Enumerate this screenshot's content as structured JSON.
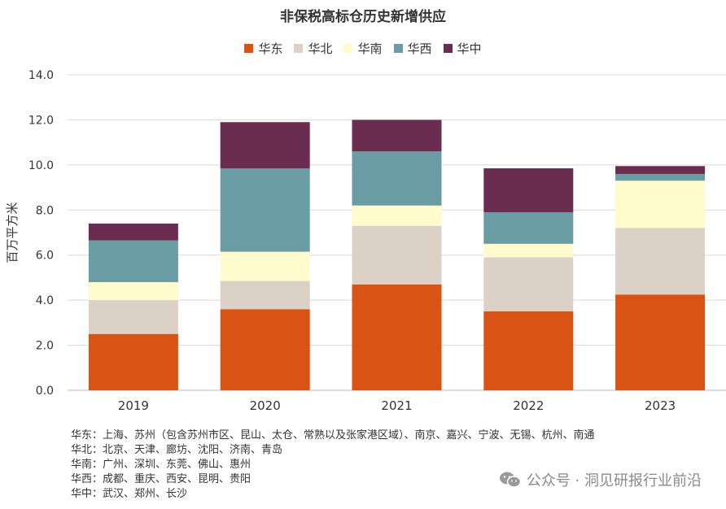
{
  "chart_data": {
    "type": "bar",
    "stacked": true,
    "title": "非保税高标仓历史新增供应",
    "ylabel": "百万平方米",
    "xlabel": "",
    "ylim": [
      0,
      14
    ],
    "yticks": [
      "0.0",
      "2.0",
      "4.0",
      "6.0",
      "8.0",
      "10.0",
      "12.0",
      "14.0"
    ],
    "categories": [
      "2019",
      "2020",
      "2021",
      "2022",
      "2023"
    ],
    "legend_position": "top",
    "grid": true,
    "series": [
      {
        "name": "华东",
        "color": "#d95414",
        "values": [
          2.5,
          3.6,
          4.7,
          3.5,
          4.25
        ]
      },
      {
        "name": "华北",
        "color": "#dbd1c7",
        "values": [
          1.5,
          1.25,
          2.6,
          2.4,
          2.95
        ]
      },
      {
        "name": "华南",
        "color": "#fffbcc",
        "values": [
          0.8,
          1.3,
          0.9,
          0.6,
          2.1
        ]
      },
      {
        "name": "华西",
        "color": "#6a9ca3",
        "values": [
          1.85,
          3.7,
          2.4,
          1.4,
          0.3
        ]
      },
      {
        "name": "华中",
        "color": "#6b2d4f",
        "values": [
          0.75,
          2.05,
          1.4,
          1.95,
          0.35
        ]
      }
    ]
  },
  "notes": [
    "华东：上海、苏州（包含苏州市区、昆山、太仓、常熟以及张家港区域）、南京、嘉兴、宁波、无锡、杭州、南通",
    "华北：北京、天津、廊坊、沈阳、济南、青岛",
    "华南：广州、深圳、东莞、佛山、惠州",
    "华西：成都、重庆、西安、昆明、贵阳",
    "华中：武汉、郑州、长沙"
  ],
  "watermark": {
    "text": "公众号 · 洞见研报行业前沿",
    "icon": "wechat-icon"
  }
}
